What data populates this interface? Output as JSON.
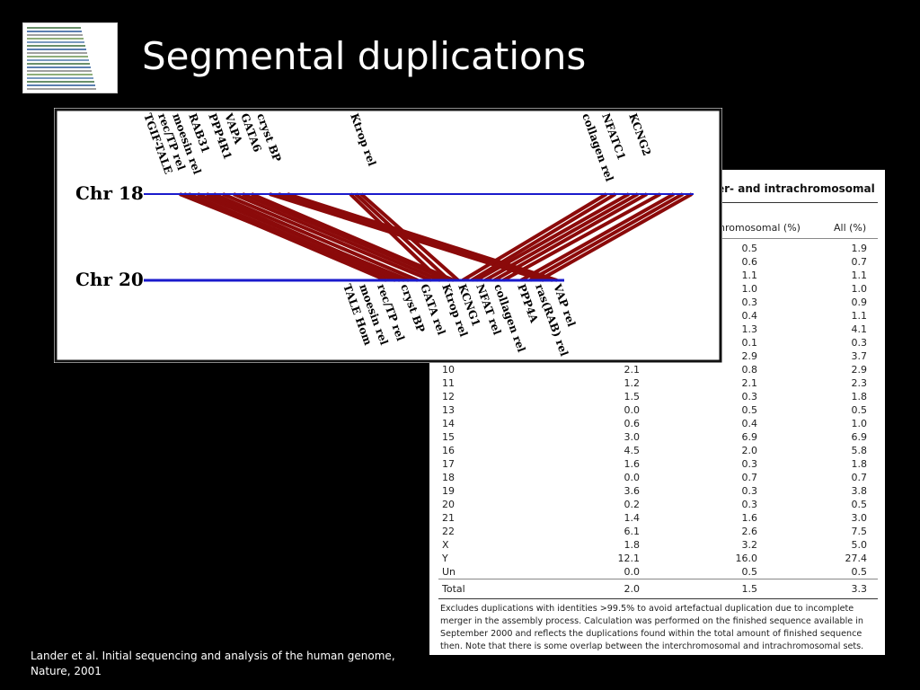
{
  "slide": {
    "title": "Segmental duplications",
    "citation": "Lander et al. Initial sequencing and analysis of the human genome, Nature, 2001"
  },
  "table": {
    "heading": "er- and intrachromosomal",
    "col_headers": [
      "hromosomal (%)",
      "All (%)"
    ],
    "partial_rows": [
      {
        "intra": "0.5",
        "all": "1.9"
      },
      {
        "intra": "0.6",
        "all": "0.7"
      },
      {
        "intra": "1.1",
        "all": "1.1"
      },
      {
        "intra": "1.0",
        "all": "1.0"
      },
      {
        "intra": "0.3",
        "all": "0.9"
      },
      {
        "intra": "0.4",
        "all": "1.1"
      },
      {
        "intra": "1.3",
        "all": "4.1"
      },
      {
        "intra": "0.1",
        "all": "0.3"
      },
      {
        "intra": "2.9",
        "all": "3.7"
      }
    ],
    "rows": [
      {
        "chr": "10",
        "inter": "2.1",
        "intra": "0.8",
        "all": "2.9"
      },
      {
        "chr": "11",
        "inter": "1.2",
        "intra": "2.1",
        "all": "2.3"
      },
      {
        "chr": "12",
        "inter": "1.5",
        "intra": "0.3",
        "all": "1.8"
      },
      {
        "chr": "13",
        "inter": "0.0",
        "intra": "0.5",
        "all": "0.5"
      },
      {
        "chr": "14",
        "inter": "0.6",
        "intra": "0.4",
        "all": "1.0"
      },
      {
        "chr": "15",
        "inter": "3.0",
        "intra": "6.9",
        "all": "6.9"
      },
      {
        "chr": "16",
        "inter": "4.5",
        "intra": "2.0",
        "all": "5.8"
      },
      {
        "chr": "17",
        "inter": "1.6",
        "intra": "0.3",
        "all": "1.8"
      },
      {
        "chr": "18",
        "inter": "0.0",
        "intra": "0.7",
        "all": "0.7"
      },
      {
        "chr": "19",
        "inter": "3.6",
        "intra": "0.3",
        "all": "3.8"
      },
      {
        "chr": "20",
        "inter": "0.2",
        "intra": "0.3",
        "all": "0.5"
      },
      {
        "chr": "21",
        "inter": "1.4",
        "intra": "1.6",
        "all": "3.0"
      },
      {
        "chr": "22",
        "inter": "6.1",
        "intra": "2.6",
        "all": "7.5"
      },
      {
        "chr": "X",
        "inter": "1.8",
        "intra": "3.2",
        "all": "5.0"
      },
      {
        "chr": "Y",
        "inter": "12.1",
        "intra": "16.0",
        "all": "27.4"
      },
      {
        "chr": "Un",
        "inter": "0.0",
        "intra": "0.5",
        "all": "0.5"
      }
    ],
    "total": {
      "chr": "Total",
      "inter": "2.0",
      "intra": "1.5",
      "all": "3.3"
    },
    "footnote": "Excludes duplications with identities >99.5% to avoid artefactual duplication due to incomplete merger in the assembly process. Calculation was performed on the finished sequence available in September 2000 and reflects the duplications found within the total amount of finished sequence then. Note that there is some overlap between the interchromosomal and intrachromosomal sets."
  },
  "diagram": {
    "chr_labels": [
      "Chr 18",
      "Chr 20"
    ],
    "chr18_genes": [
      "TGIF-TALE",
      "rec/TP rel",
      "moesin rel",
      "RAB31",
      "PPP4R1",
      "VAPA",
      "GATA6",
      "cryst BP",
      "Ktrop rel",
      "collagen rel",
      "NFATC1",
      "KCNG2"
    ],
    "chr20_genes": [
      "TALE Hom",
      "moesin rel",
      "rec/TP rel",
      "cryst BP",
      "GATA rel",
      "Ktrop rel",
      "KCNG1",
      "NFAT rel",
      "collagen rel",
      "PPP4A",
      "ras(RAB) rel",
      "VAP rel"
    ],
    "line_color": "#1a1acc",
    "link_color": "#8b0a0a"
  }
}
